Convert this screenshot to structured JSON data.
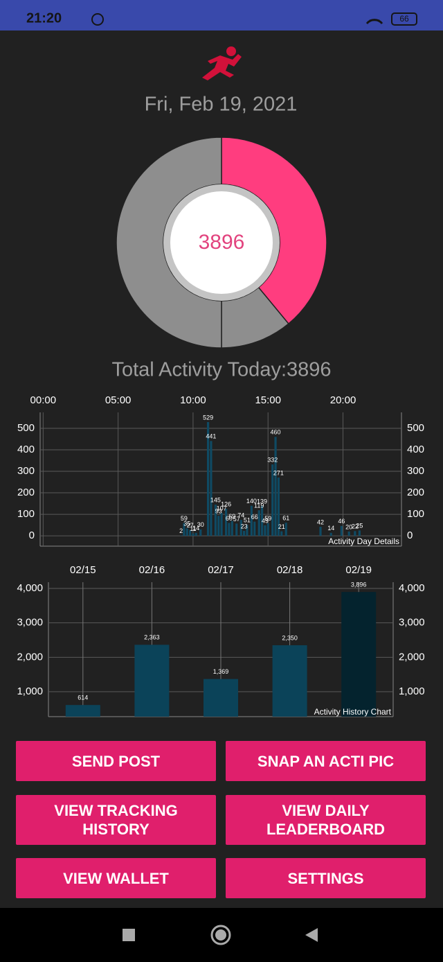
{
  "status_bar": {
    "time": "21:20",
    "battery": "66"
  },
  "header": {
    "date": "Fri, Feb 19, 2021"
  },
  "chart_data": [
    {
      "type": "donut",
      "center_label": "3896",
      "values": [
        39,
        11,
        50
      ],
      "colors": [
        "#ff3d7f",
        "#8e8e8e",
        "#8e8e8e"
      ],
      "caption": "Total Activity Today:3896"
    },
    {
      "type": "bar",
      "annotation": "Activity Day Details",
      "color": "#0f4a63",
      "x": [
        9.2,
        9.4,
        9.6,
        9.8,
        10.0,
        10.2,
        10.5,
        11.0,
        11.2,
        11.5,
        11.7,
        11.9,
        12.2,
        12.4,
        12.6,
        12.9,
        13.2,
        13.4,
        13.6,
        13.9,
        14.1,
        14.4,
        14.6,
        14.8,
        15.0,
        15.3,
        15.5,
        15.7,
        15.9,
        16.2,
        18.5,
        19.2,
        19.9,
        20.4,
        20.8,
        21.1
      ],
      "values": [
        2,
        59,
        35,
        27,
        11,
        14,
        30,
        529,
        441,
        145,
        93,
        107,
        126,
        60,
        69,
        57,
        74,
        23,
        51,
        140,
        66,
        119,
        139,
        49,
        59,
        332,
        460,
        271,
        21,
        61,
        42,
        14,
        46,
        20,
        22,
        25
      ],
      "xlim": [
        -0.2,
        23.9
      ],
      "xticks": [
        {
          "value": 0,
          "label": "00:00"
        },
        {
          "value": 5,
          "label": "05:00"
        },
        {
          "value": 10,
          "label": "10:00"
        },
        {
          "value": 15,
          "label": "15:00"
        },
        {
          "value": 20,
          "label": "20:00"
        }
      ],
      "ylim": [
        -48,
        574
      ],
      "yticks": [
        0,
        100,
        200,
        300,
        400,
        500
      ],
      "grid": true
    },
    {
      "type": "bar",
      "annotation": "Activity History Chart",
      "categories": [
        "02/15",
        "02/16",
        "02/17",
        "02/18",
        "02/19"
      ],
      "values": [
        614,
        2363,
        1369,
        2350,
        3896
      ],
      "value_labels": [
        "614",
        "2,363",
        "1,369",
        "2,350",
        "3,896"
      ],
      "colors": [
        "#0b4359",
        "#0b4359",
        "#0b4359",
        "#0b4359",
        "#04232e"
      ],
      "ylim": [
        276,
        4181
      ],
      "yticks": [
        {
          "value": 1000,
          "label": "1,000"
        },
        {
          "value": 2000,
          "label": "2,000"
        },
        {
          "value": 3000,
          "label": "3,000"
        },
        {
          "value": 4000,
          "label": "4,000"
        }
      ],
      "grid": true
    }
  ],
  "buttons": [
    "SEND POST",
    "SNAP AN ACTI PIC",
    "VIEW TRACKING HISTORY",
    "VIEW DAILY LEADERBOARD",
    "VIEW WALLET",
    "SETTINGS"
  ]
}
